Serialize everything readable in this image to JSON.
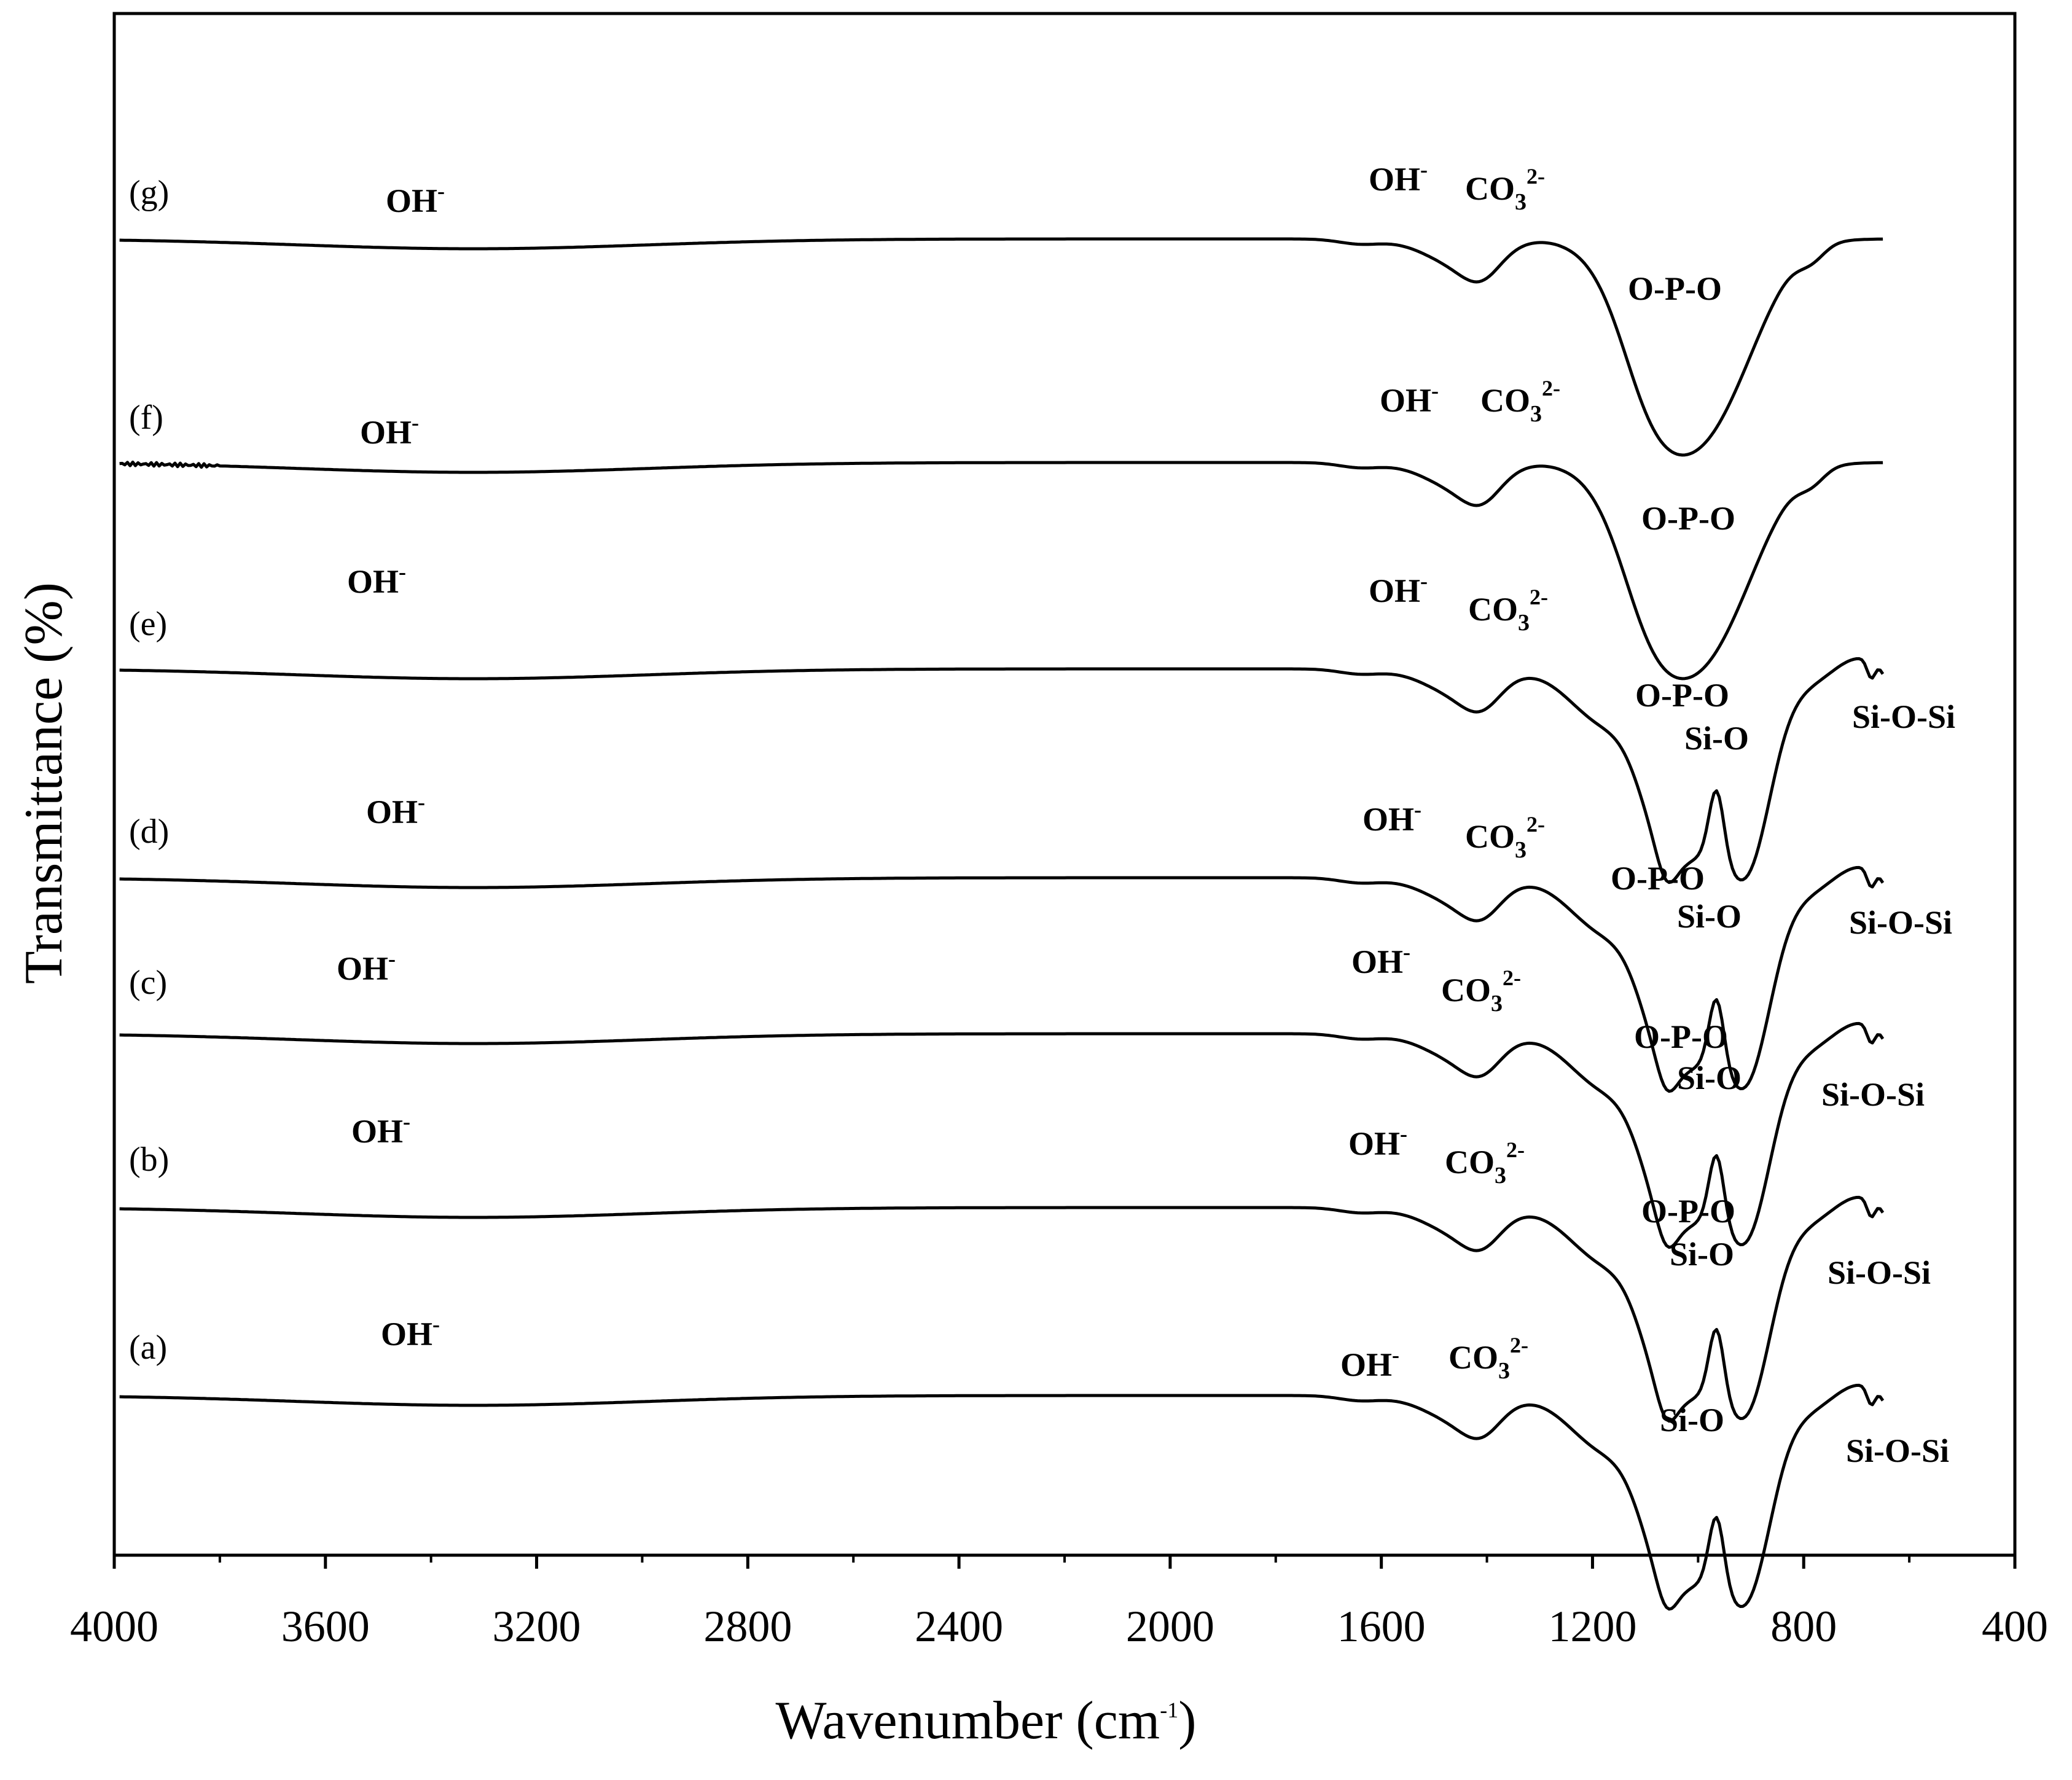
{
  "chart_data": {
    "type": "line",
    "title": "",
    "xlabel": "Wavenumber (cm",
    "xlabel_superscript": "-1",
    "xlabel_close": ")",
    "ylabel": "Transmittance (%)",
    "xlim": [
      4000,
      400
    ],
    "x_reversed": true,
    "y_ticks_shown": false,
    "grid": false,
    "x_ticks": [
      {
        "value": 4000,
        "label": "4000"
      },
      {
        "value": 3600,
        "label": "3600"
      },
      {
        "value": 3200,
        "label": "3200"
      },
      {
        "value": 2800,
        "label": "2800"
      },
      {
        "value": 2400,
        "label": "2400"
      },
      {
        "value": 2000,
        "label": "2000"
      },
      {
        "value": 1600,
        "label": "1600"
      },
      {
        "value": 1200,
        "label": "1200"
      },
      {
        "value": 800,
        "label": "800"
      },
      {
        "value": 400,
        "label": "400"
      }
    ],
    "series": [
      {
        "name": "(a)",
        "label": "(a)",
        "offset": 0,
        "has_po": false,
        "bands": {
          "oh_high": "OH-",
          "oh_low": "OH-",
          "co3": "CO3 2-",
          "sio": "Si-O",
          "sioSi": "Si-O-Si"
        }
      },
      {
        "name": "(b)",
        "label": "(b)",
        "offset": 1,
        "has_po": true,
        "bands": {
          "oh_high": "OH-",
          "oh_low": "OH-",
          "co3": "CO3 2-",
          "po": "O-P-O",
          "sio": "Si-O",
          "sioSi": "Si-O-Si"
        }
      },
      {
        "name": "(c)",
        "label": "(c)",
        "offset": 2,
        "has_po": true,
        "bands": {
          "oh_high": "OH-",
          "oh_low": "OH-",
          "co3": "CO3 2-",
          "po": "O-P-O",
          "sio": "Si-O",
          "sioSi": "Si-O-Si"
        }
      },
      {
        "name": "(d)",
        "label": "(d)",
        "offset": 3,
        "has_po": true,
        "bands": {
          "oh_high": "OH-",
          "oh_low": "OH-",
          "co3": "CO3 2-",
          "po": "O-P-O",
          "sio": "Si-O",
          "sioSi": "Si-O-Si"
        }
      },
      {
        "name": "(e)",
        "label": "(e)",
        "offset": 4,
        "has_po": true,
        "bands": {
          "oh_high": "OH-",
          "oh_low": "OH-",
          "co3": "CO3 2-",
          "po": "O-P-O",
          "sio": "Si-O",
          "sioSi": "Si-O-Si"
        }
      },
      {
        "name": "(f)",
        "label": "(f)",
        "offset": 5,
        "has_po": true,
        "bands": {
          "oh_high": "OH-",
          "oh_low": "OH-",
          "co3": "CO3 2-",
          "po": "O-P-O"
        }
      },
      {
        "name": "(g)",
        "label": "(g)",
        "offset": 6,
        "has_po": true,
        "bands": {
          "oh_high": "OH-",
          "oh_low": "OH-",
          "co3": "CO3 2-",
          "po": "O-P-O"
        }
      }
    ],
    "band_glyphs": {
      "oh_text": "OH",
      "oh_sup": "-",
      "co3_text": "CO",
      "co3_sub": "3",
      "co3_sup": "2-"
    }
  }
}
